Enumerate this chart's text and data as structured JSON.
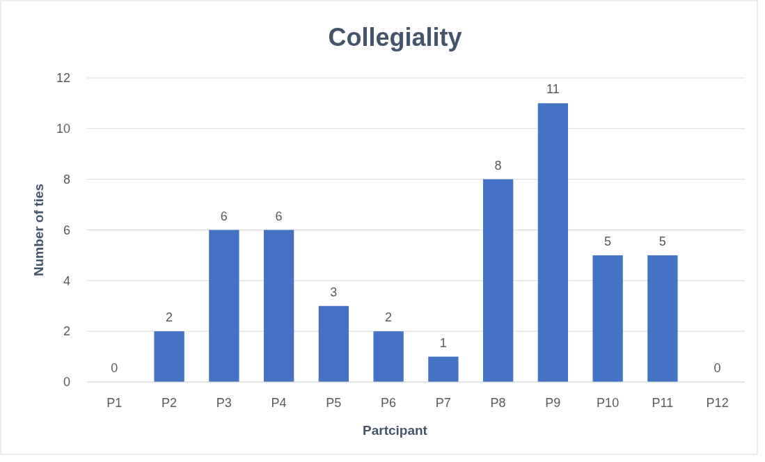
{
  "chart_data": {
    "type": "bar",
    "title": "Collegiality",
    "xlabel": "Partcipant",
    "ylabel": "Number of ties",
    "categories": [
      "P1",
      "P2",
      "P3",
      "P4",
      "P5",
      "P6",
      "P7",
      "P8",
      "P9",
      "P10",
      "P11",
      "P12"
    ],
    "values": [
      0,
      2,
      6,
      6,
      3,
      2,
      1,
      8,
      11,
      5,
      5,
      0
    ],
    "color": "#4472c4",
    "ylim": [
      0,
      12
    ],
    "yticks": [
      0,
      2,
      4,
      6,
      8,
      10,
      12
    ],
    "grid": "y",
    "data_labels": true
  }
}
